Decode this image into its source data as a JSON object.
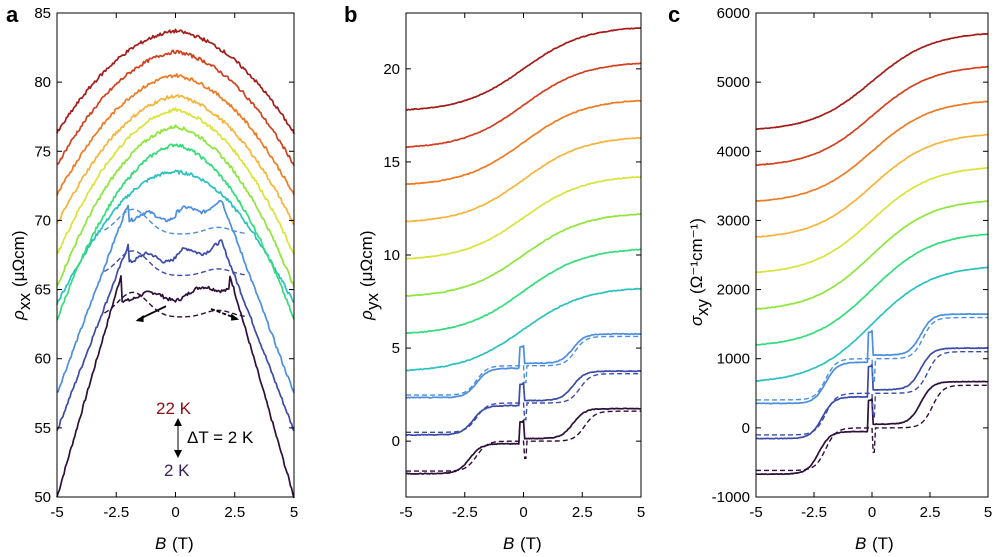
{
  "colors": [
    "#2d0f3a",
    "#3c4ba8",
    "#4c8ee0",
    "#2bc1c1",
    "#33dd7a",
    "#8ee63a",
    "#d9e33a",
    "#f6b43a",
    "#f07a22",
    "#d2401e",
    "#a41b18",
    "#6c0c10"
  ],
  "panels": [
    {
      "label": "a",
      "xlabel": "B",
      "xlabel_unit": "(T)",
      "ylabel": "ρ",
      "ylabel_sub": "xx",
      "ylabel_unit": "(μΩcm)",
      "xticks": [
        "-5",
        "-2.5",
        "0",
        "2.5",
        "5"
      ],
      "yticks": [
        "50",
        "55",
        "60",
        "65",
        "70",
        "75",
        "80",
        "85"
      ],
      "annotation": {
        "top": "22 K",
        "middle": "ΔT = 2 K",
        "bottom": "2 K"
      }
    },
    {
      "label": "b",
      "xlabel": "B",
      "xlabel_unit": "(T)",
      "ylabel": "ρ",
      "ylabel_sub": "yx",
      "ylabel_unit": "(μΩcm)",
      "xticks": [
        "-5",
        "-2.5",
        "0",
        "2.5",
        "5"
      ],
      "yticks": [
        "0",
        "5",
        "10",
        "15",
        "20"
      ]
    },
    {
      "label": "c",
      "xlabel": "B",
      "xlabel_unit": "(T)",
      "ylabel": "σ",
      "ylabel_sub": "xy",
      "ylabel_unit": "(Ω⁻¹cm⁻¹)",
      "xticks": [
        "-5",
        "-2.5",
        "0",
        "2.5",
        "5"
      ],
      "yticks": [
        "-1000",
        "0",
        "1000",
        "2000",
        "3000",
        "4000",
        "5000",
        "6000"
      ]
    }
  ],
  "chart_data": [
    {
      "type": "line",
      "panel": "a",
      "x_unit": "T",
      "xlim": [
        -5,
        5
      ],
      "ylim": [
        50,
        85
      ],
      "temperatures_K": [
        2,
        4,
        6,
        8,
        10,
        12,
        14,
        16,
        18,
        20,
        22
      ],
      "series": [
        {
          "peak": 64.5,
          "wings": [
            50.0,
            50.0
          ]
        },
        {
          "peak": 67.5,
          "wings": [
            54.8,
            54.8
          ]
        },
        {
          "peak": 70.5,
          "wings": [
            57.5,
            57.5
          ]
        },
        {
          "peak": 73.5,
          "wings": [
            60.2,
            60.2
          ]
        },
        {
          "peak": 75.5,
          "wings": [
            62.8,
            62.8
          ]
        },
        {
          "peak": 76.8,
          "wings": [
            65.2,
            65.2
          ]
        },
        {
          "peak": 78.0,
          "wings": [
            67.5,
            67.5
          ]
        },
        {
          "peak": 79.0,
          "wings": [
            69.7,
            69.7
          ]
        },
        {
          "peak": 80.5,
          "wings": [
            71.8,
            71.8
          ]
        },
        {
          "peak": 82.2,
          "wings": [
            74.0,
            74.0
          ]
        },
        {
          "peak": 83.7,
          "wings": [
            76.3,
            76.3
          ]
        }
      ]
    },
    {
      "type": "line",
      "panel": "b",
      "x_unit": "T",
      "xlim": [
        -5,
        5
      ],
      "ylim": [
        -3,
        23
      ],
      "temperatures_K": [
        2,
        4,
        6,
        8,
        10,
        12,
        14,
        16,
        18,
        20,
        22
      ],
      "series": [
        {
          "at_minus5": -2.3,
          "at_plus5": 2.3
        },
        {
          "at_minus5": -0.2,
          "at_plus5": 4.3
        },
        {
          "at_minus5": 1.8,
          "at_plus5": 6.3
        },
        {
          "at_minus5": 3.8,
          "at_plus5": 8.2
        },
        {
          "at_minus5": 5.8,
          "at_plus5": 10.3
        },
        {
          "at_minus5": 7.8,
          "at_plus5": 12.2
        },
        {
          "at_minus5": 9.8,
          "at_plus5": 14.2
        },
        {
          "at_minus5": 11.8,
          "at_plus5": 16.3
        },
        {
          "at_minus5": 13.8,
          "at_plus5": 18.3
        },
        {
          "at_minus5": 15.8,
          "at_plus5": 20.3
        },
        {
          "at_minus5": 17.8,
          "at_plus5": 22.2
        }
      ]
    },
    {
      "type": "line",
      "panel": "c",
      "x_unit": "T",
      "xlim": [
        -5,
        5
      ],
      "ylim": [
        -1000,
        6000
      ],
      "temperatures_K": [
        2,
        4,
        6,
        8,
        10,
        12,
        14,
        16,
        18,
        20,
        22
      ],
      "series": [
        {
          "at_minus5": -880,
          "at_plus5": 880
        },
        {
          "at_minus5": -360,
          "at_plus5": 1360
        },
        {
          "at_minus5": 150,
          "at_plus5": 1850
        },
        {
          "at_minus5": 680,
          "at_plus5": 2320
        },
        {
          "at_minus5": 1200,
          "at_plus5": 2800
        },
        {
          "at_minus5": 1720,
          "at_plus5": 3280
        },
        {
          "at_minus5": 2250,
          "at_plus5": 3760
        },
        {
          "at_minus5": 2760,
          "at_plus5": 4240
        },
        {
          "at_minus5": 3280,
          "at_plus5": 4720
        },
        {
          "at_minus5": 3800,
          "at_plus5": 5220
        },
        {
          "at_minus5": 4320,
          "at_plus5": 5700
        }
      ]
    }
  ]
}
